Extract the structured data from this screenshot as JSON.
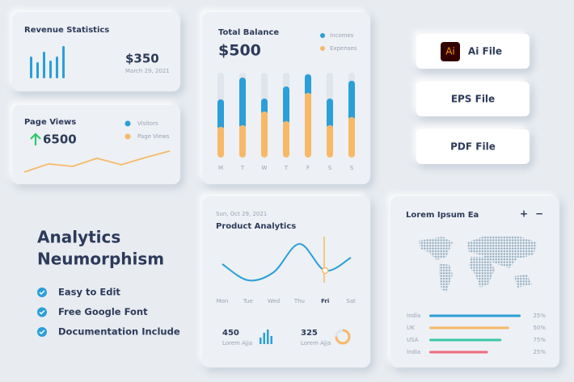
{
  "revenue": {
    "title": "Revenue Statistics",
    "amount": "$350",
    "date": "March 29, 2021",
    "bars": [
      27,
      20,
      33,
      22,
      27,
      40
    ]
  },
  "page_views": {
    "title": "Page Views",
    "value": "6500",
    "legend": [
      "Visitors",
      "Page Views"
    ],
    "line": [
      2,
      12,
      9,
      19,
      11,
      20,
      28
    ]
  },
  "balance": {
    "title": "Total Balance",
    "amount": "$500",
    "legend": [
      "Incomes",
      "Expenses"
    ],
    "days": [
      "M",
      "T",
      "W",
      "T",
      "F",
      "S",
      "S"
    ],
    "incomes": [
      34,
      59,
      16,
      43,
      23,
      33,
      45
    ],
    "expenses": [
      38,
      40,
      57,
      45,
      80,
      40,
      50
    ]
  },
  "files": [
    "Ai File",
    "EPS File",
    "PDF File"
  ],
  "ai_icon": "Ai",
  "headline": [
    "Analytics",
    "Neumorphism"
  ],
  "features": [
    "Easy to Edit",
    "Free Google Font",
    "Documentation Include"
  ],
  "product": {
    "date": "Sun, Oct 29, 2021",
    "title": "Product Analytics",
    "days": [
      "Mon",
      "Tue",
      "Wed",
      "Thu",
      "Fri",
      "Sat"
    ],
    "wave": [
      20,
      0,
      10,
      45,
      12,
      28
    ],
    "highlight_day": 4,
    "stats": [
      {
        "value": "450",
        "label": "Lorem Ajja",
        "bars": [
          8,
          14,
          18,
          10
        ]
      },
      {
        "value": "325",
        "label": "Lorem Ajja",
        "ring": 75
      }
    ]
  },
  "map": {
    "title": "Lorem Ipsum Ea",
    "buttons": [
      "+",
      "−"
    ],
    "rows": [
      {
        "country": "India",
        "percent": "25%",
        "fill": 95,
        "color": "#2a9fd8"
      },
      {
        "country": "UK",
        "percent": "50%",
        "fill": 83,
        "color": "#f7b968"
      },
      {
        "country": "USA",
        "percent": "75%",
        "fill": 75,
        "color": "#3cc7a8"
      },
      {
        "country": "India",
        "percent": "25%",
        "fill": 61,
        "color": "#f06a7d"
      }
    ]
  }
}
